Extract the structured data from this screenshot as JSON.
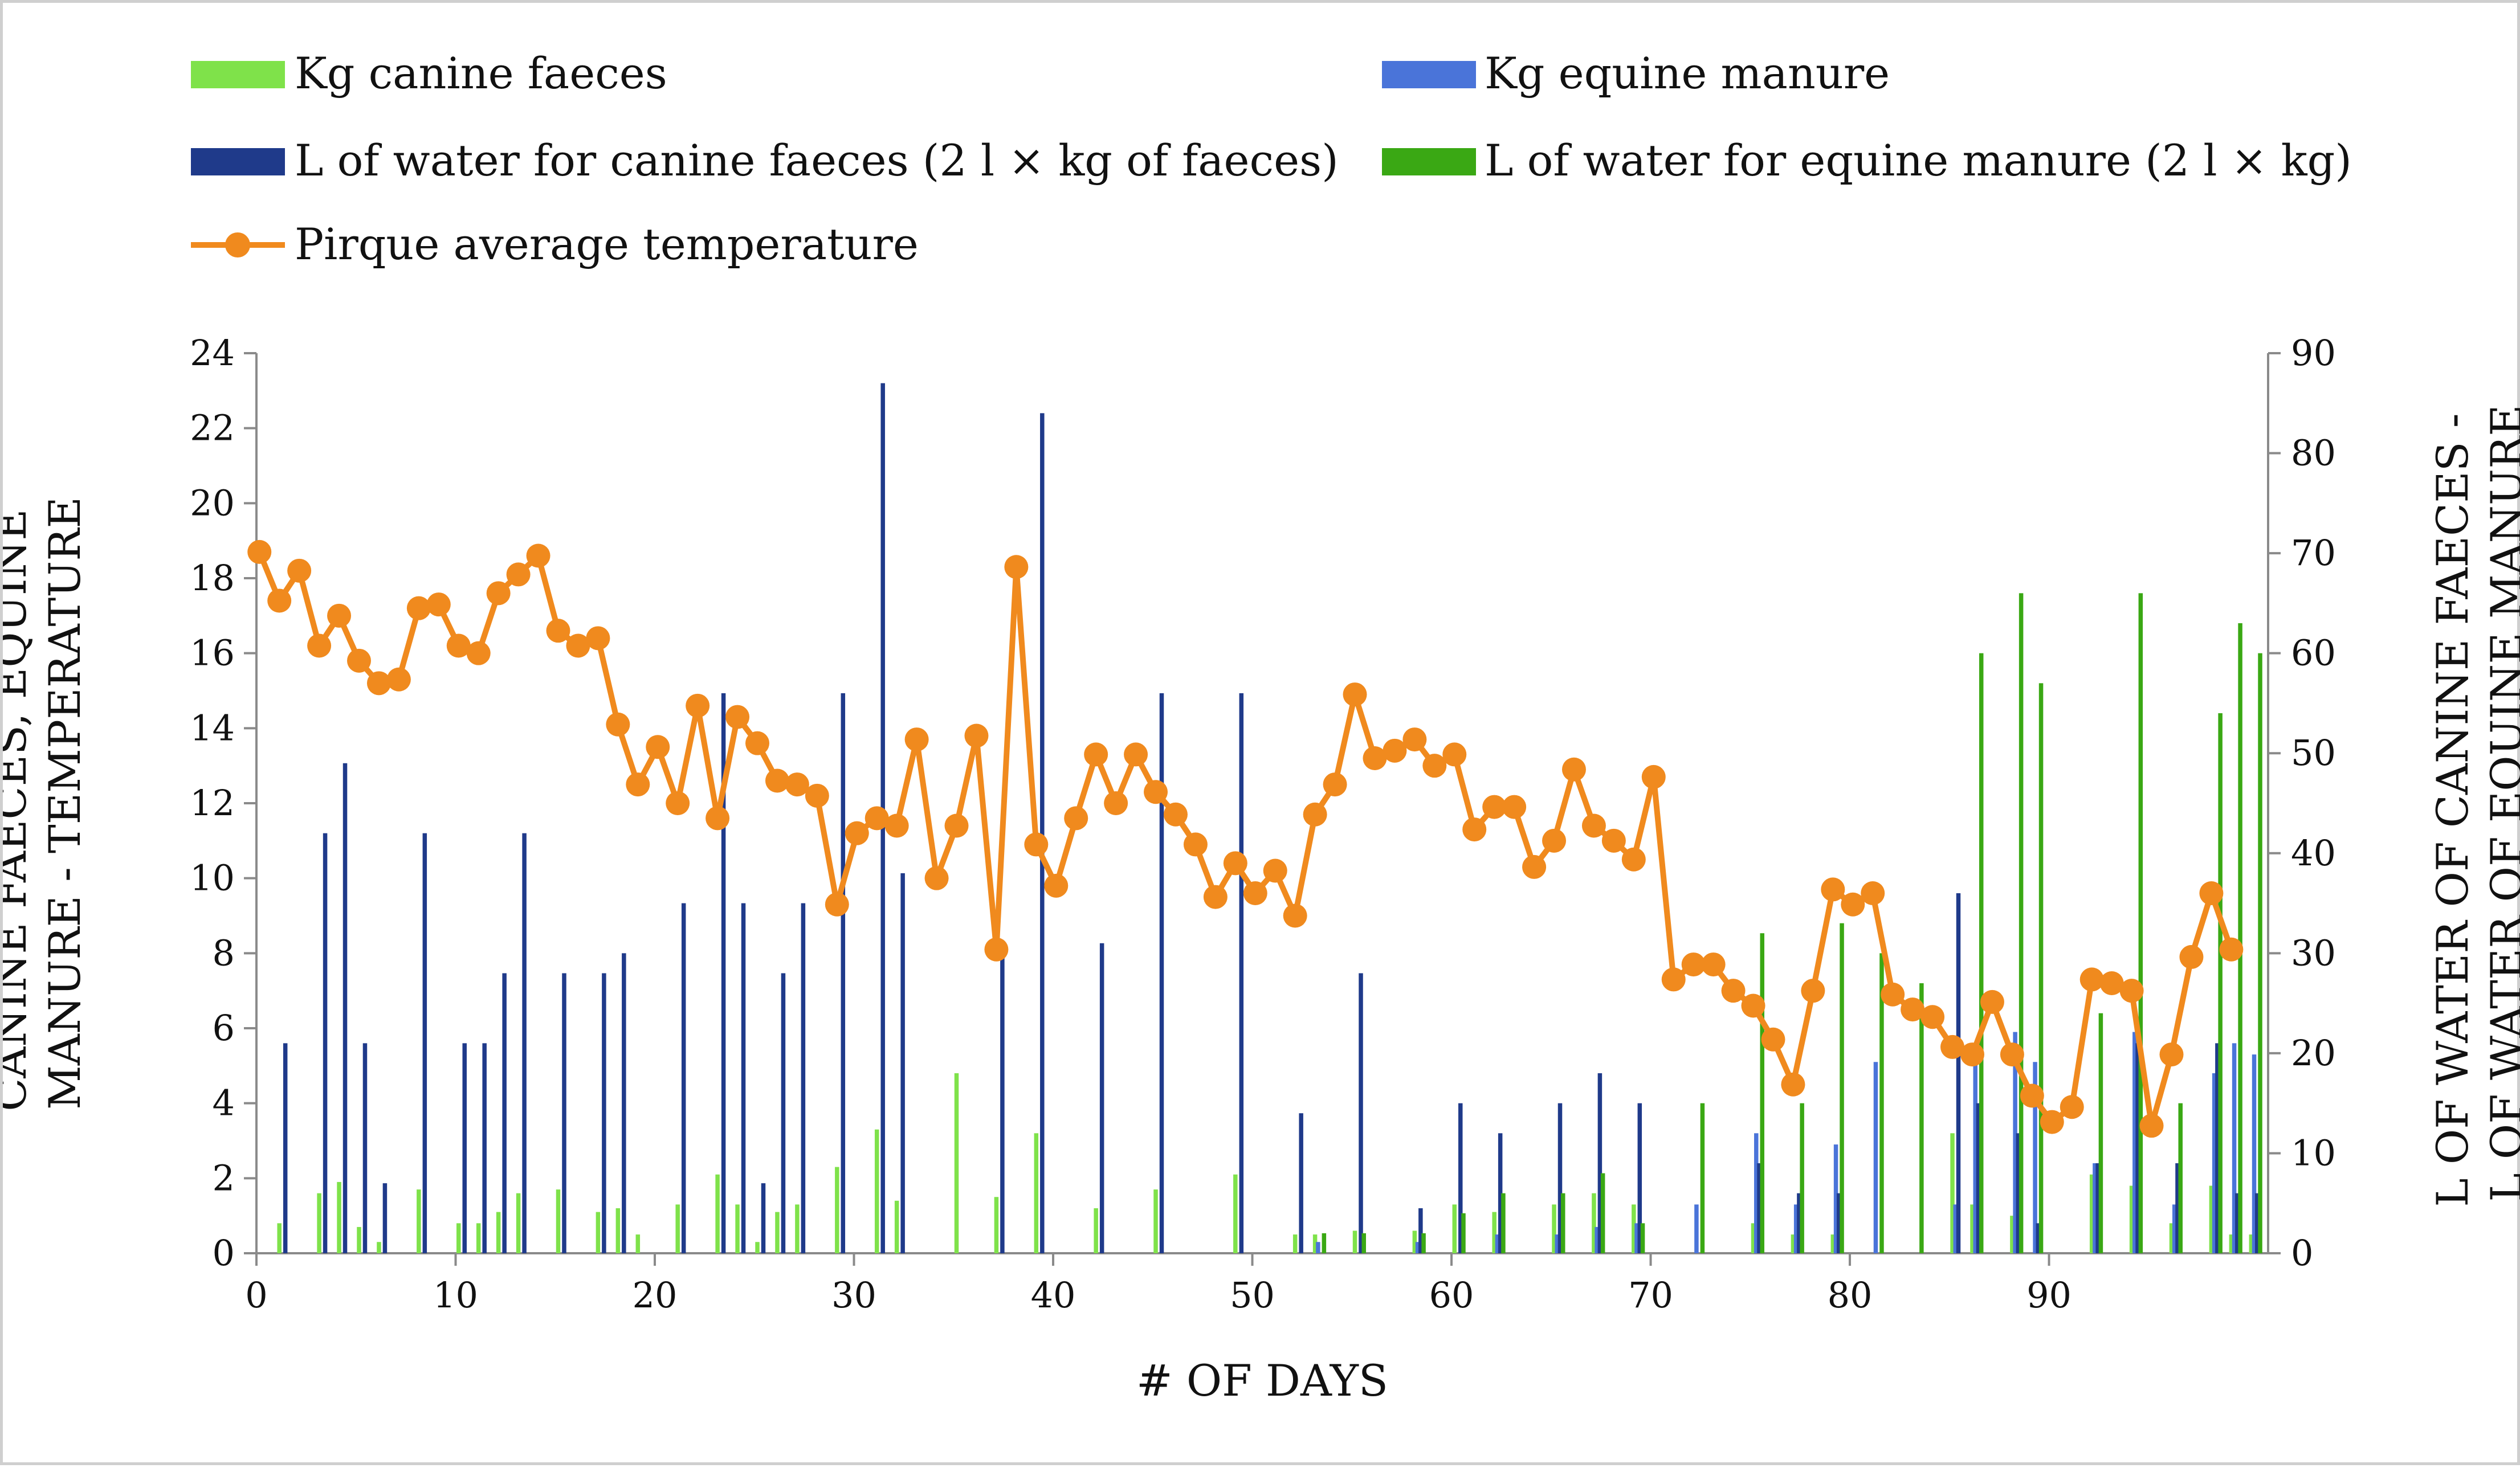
{
  "chart_data": {
    "type": "bar",
    "title": "",
    "xlabel": "# OF DAYS",
    "ylabel_left": "CANINE FAECES, EQUINE MANURE - TEMPERATURE",
    "ylabel_right": "L OF WATER OF CANINE FAECES - L OF WATER OF EQUINE MANURE",
    "xlim": [
      0,
      101
    ],
    "ylim_left": [
      0,
      24
    ],
    "ylim_right": [
      0,
      90
    ],
    "x_ticks": [
      0,
      10,
      20,
      30,
      40,
      50,
      60,
      70,
      80,
      90
    ],
    "y_ticks_left": [
      0,
      2,
      4,
      6,
      8,
      10,
      12,
      14,
      16,
      18,
      20,
      22,
      24
    ],
    "y_ticks_right": [
      0,
      10,
      20,
      30,
      40,
      50,
      60,
      70,
      80,
      90
    ],
    "x_tick_labels": [
      "0",
      "10",
      "20",
      "30",
      "40",
      "50",
      "60",
      "70",
      "80",
      "90"
    ],
    "y_tick_labels_left": [
      "0",
      "2",
      "4",
      "6",
      "8",
      "10",
      "12",
      "14",
      "16",
      "18",
      "20",
      "22",
      "24"
    ],
    "y_tick_labels_right": [
      "0",
      "10",
      "20",
      "30",
      "40",
      "50",
      "60",
      "70",
      "80",
      "90"
    ],
    "grid": false,
    "legend_position": "top",
    "series": [
      {
        "name": "Kg canine faeces",
        "kind": "bar",
        "axis": "left",
        "color": "#7fe24a",
        "points": [
          [
            1,
            0.8
          ],
          [
            3,
            1.6
          ],
          [
            4,
            1.9
          ],
          [
            5,
            0.7
          ],
          [
            6,
            0.3
          ],
          [
            8,
            1.7
          ],
          [
            10,
            0.8
          ],
          [
            11,
            0.8
          ],
          [
            12,
            1.1
          ],
          [
            13,
            1.6
          ],
          [
            15,
            1.7
          ],
          [
            17,
            1.1
          ],
          [
            18,
            1.2
          ],
          [
            19,
            0.5
          ],
          [
            21,
            1.3
          ],
          [
            23,
            2.1
          ],
          [
            24,
            1.3
          ],
          [
            25,
            0.3
          ],
          [
            26,
            1.1
          ],
          [
            27,
            1.3
          ],
          [
            29,
            2.3
          ],
          [
            31,
            3.3
          ],
          [
            32,
            1.4
          ],
          [
            35,
            4.8
          ],
          [
            37,
            1.5
          ],
          [
            39,
            3.2
          ],
          [
            42,
            1.2
          ],
          [
            45,
            1.7
          ],
          [
            49,
            2.1
          ],
          [
            52,
            0.5
          ],
          [
            53,
            0.5
          ],
          [
            55,
            0.6
          ],
          [
            58,
            0.6
          ],
          [
            60,
            1.3
          ],
          [
            62,
            1.1
          ],
          [
            65,
            1.3
          ],
          [
            67,
            1.6
          ],
          [
            69,
            1.3
          ],
          [
            75,
            0.8
          ],
          [
            77,
            0.5
          ],
          [
            79,
            0.5
          ],
          [
            85,
            3.2
          ],
          [
            86,
            1.3
          ],
          [
            88,
            1.0
          ],
          [
            92,
            2.1
          ],
          [
            94,
            1.8
          ],
          [
            96,
            0.8
          ],
          [
            98,
            1.8
          ],
          [
            99,
            0.5
          ],
          [
            100,
            0.5
          ]
        ]
      },
      {
        "name": "Kg equine manure",
        "kind": "bar",
        "axis": "left",
        "color": "#4a74d9",
        "points": [
          [
            53,
            0.3
          ],
          [
            58,
            0.3
          ],
          [
            62,
            0.5
          ],
          [
            65,
            0.5
          ],
          [
            67,
            0.7
          ],
          [
            69,
            0.8
          ],
          [
            72,
            1.3
          ],
          [
            75,
            3.2
          ],
          [
            77,
            1.3
          ],
          [
            79,
            2.9
          ],
          [
            81,
            5.1
          ],
          [
            85,
            1.3
          ],
          [
            86,
            5.1
          ],
          [
            88,
            5.9
          ],
          [
            89,
            5.1
          ],
          [
            92,
            2.4
          ],
          [
            94,
            5.9
          ],
          [
            96,
            1.3
          ],
          [
            98,
            4.8
          ],
          [
            99,
            5.6
          ],
          [
            100,
            5.3
          ]
        ]
      },
      {
        "name": "L of water for canine faeces (2 l × kg of faeces)",
        "kind": "bar",
        "axis": "right",
        "color": "#1f3a8a",
        "points": [
          [
            1,
            21
          ],
          [
            3,
            42
          ],
          [
            4,
            49
          ],
          [
            5,
            21
          ],
          [
            6,
            7
          ],
          [
            8,
            42
          ],
          [
            10,
            21
          ],
          [
            11,
            21
          ],
          [
            12,
            28
          ],
          [
            13,
            42
          ],
          [
            15,
            28
          ],
          [
            17,
            28
          ],
          [
            18,
            30
          ],
          [
            21,
            35
          ],
          [
            23,
            56
          ],
          [
            24,
            35
          ],
          [
            25,
            7
          ],
          [
            26,
            28
          ],
          [
            27,
            35
          ],
          [
            29,
            56
          ],
          [
            31,
            87
          ],
          [
            32,
            38
          ],
          [
            37,
            30
          ],
          [
            39,
            84
          ],
          [
            42,
            31
          ],
          [
            45,
            56
          ],
          [
            49,
            56
          ],
          [
            52,
            14
          ],
          [
            55,
            28
          ],
          [
            58,
            4.5
          ],
          [
            60,
            15
          ],
          [
            62,
            12
          ],
          [
            65,
            15
          ],
          [
            67,
            18
          ],
          [
            69,
            15
          ],
          [
            75,
            9
          ],
          [
            77,
            6
          ],
          [
            79,
            6
          ],
          [
            85,
            36
          ],
          [
            86,
            15
          ],
          [
            88,
            12
          ],
          [
            89,
            3
          ],
          [
            92,
            9
          ],
          [
            94,
            21
          ],
          [
            96,
            9
          ],
          [
            98,
            21
          ],
          [
            99,
            6
          ],
          [
            100,
            6
          ]
        ]
      },
      {
        "name": "L of water for equine manure (2 l × kg)",
        "kind": "bar",
        "axis": "right",
        "color": "#3aa814",
        "points": [
          [
            53,
            2
          ],
          [
            55,
            2
          ],
          [
            58,
            2
          ],
          [
            60,
            4
          ],
          [
            62,
            6
          ],
          [
            65,
            6
          ],
          [
            67,
            8
          ],
          [
            69,
            3
          ],
          [
            72,
            15
          ],
          [
            75,
            32
          ],
          [
            77,
            15
          ],
          [
            79,
            33
          ],
          [
            81,
            30
          ],
          [
            83,
            27
          ],
          [
            86,
            60
          ],
          [
            88,
            66
          ],
          [
            89,
            57
          ],
          [
            92,
            24
          ],
          [
            94,
            66
          ],
          [
            96,
            15
          ],
          [
            98,
            54
          ],
          [
            99,
            63
          ],
          [
            100,
            60
          ]
        ]
      },
      {
        "name": "Pirque average temperature",
        "kind": "line",
        "axis": "left",
        "color": "#f08a1e",
        "points": [
          [
            0,
            18.7
          ],
          [
            1,
            17.4
          ],
          [
            2,
            18.2
          ],
          [
            3,
            16.2
          ],
          [
            4,
            17.0
          ],
          [
            5,
            15.8
          ],
          [
            6,
            15.2
          ],
          [
            7,
            15.3
          ],
          [
            8,
            17.2
          ],
          [
            9,
            17.3
          ],
          [
            10,
            16.2
          ],
          [
            11,
            16.0
          ],
          [
            12,
            17.6
          ],
          [
            13,
            18.1
          ],
          [
            14,
            18.6
          ],
          [
            15,
            16.6
          ],
          [
            16,
            16.2
          ],
          [
            17,
            16.4
          ],
          [
            18,
            14.1
          ],
          [
            19,
            12.5
          ],
          [
            20,
            13.5
          ],
          [
            21,
            12.0
          ],
          [
            22,
            14.6
          ],
          [
            23,
            11.6
          ],
          [
            24,
            14.3
          ],
          [
            25,
            13.6
          ],
          [
            26,
            12.6
          ],
          [
            27,
            12.5
          ],
          [
            28,
            12.2
          ],
          [
            29,
            9.3
          ],
          [
            30,
            11.2
          ],
          [
            31,
            11.6
          ],
          [
            32,
            11.4
          ],
          [
            33,
            13.7
          ],
          [
            34,
            10.0
          ],
          [
            35,
            11.4
          ],
          [
            36,
            13.8
          ],
          [
            37,
            8.1
          ],
          [
            38,
            18.3
          ],
          [
            39,
            10.9
          ],
          [
            40,
            9.8
          ],
          [
            41,
            11.6
          ],
          [
            42,
            13.3
          ],
          [
            43,
            12.0
          ],
          [
            44,
            13.3
          ],
          [
            45,
            12.3
          ],
          [
            46,
            11.7
          ],
          [
            47,
            10.9
          ],
          [
            48,
            9.5
          ],
          [
            49,
            10.4
          ],
          [
            50,
            9.6
          ],
          [
            51,
            10.2
          ],
          [
            52,
            9.0
          ],
          [
            53,
            11.7
          ],
          [
            54,
            12.5
          ],
          [
            55,
            14.9
          ],
          [
            56,
            13.2
          ],
          [
            57,
            13.4
          ],
          [
            58,
            13.7
          ],
          [
            59,
            13.0
          ],
          [
            60,
            13.3
          ],
          [
            61,
            11.3
          ],
          [
            62,
            11.9
          ],
          [
            63,
            11.9
          ],
          [
            64,
            10.3
          ],
          [
            65,
            11.0
          ],
          [
            66,
            12.9
          ],
          [
            67,
            11.4
          ],
          [
            68,
            11.0
          ],
          [
            69,
            10.5
          ],
          [
            70,
            12.7
          ],
          [
            71,
            7.3
          ],
          [
            72,
            7.7
          ],
          [
            73,
            7.7
          ],
          [
            74,
            7.0
          ],
          [
            75,
            6.6
          ],
          [
            76,
            5.7
          ],
          [
            77,
            4.5
          ],
          [
            78,
            7.0
          ],
          [
            79,
            9.7
          ],
          [
            80,
            9.3
          ],
          [
            81,
            9.6
          ],
          [
            82,
            6.9
          ],
          [
            83,
            6.5
          ],
          [
            84,
            6.3
          ],
          [
            85,
            5.5
          ],
          [
            86,
            5.3
          ],
          [
            87,
            6.7
          ],
          [
            88,
            5.3
          ],
          [
            89,
            4.2
          ],
          [
            90,
            3.5
          ],
          [
            91,
            3.9
          ],
          [
            92,
            7.3
          ],
          [
            93,
            7.2
          ],
          [
            94,
            7.0
          ],
          [
            95,
            3.4
          ],
          [
            96,
            5.3
          ],
          [
            97,
            7.9
          ],
          [
            98,
            9.6
          ],
          [
            99,
            8.1
          ]
        ]
      }
    ]
  }
}
